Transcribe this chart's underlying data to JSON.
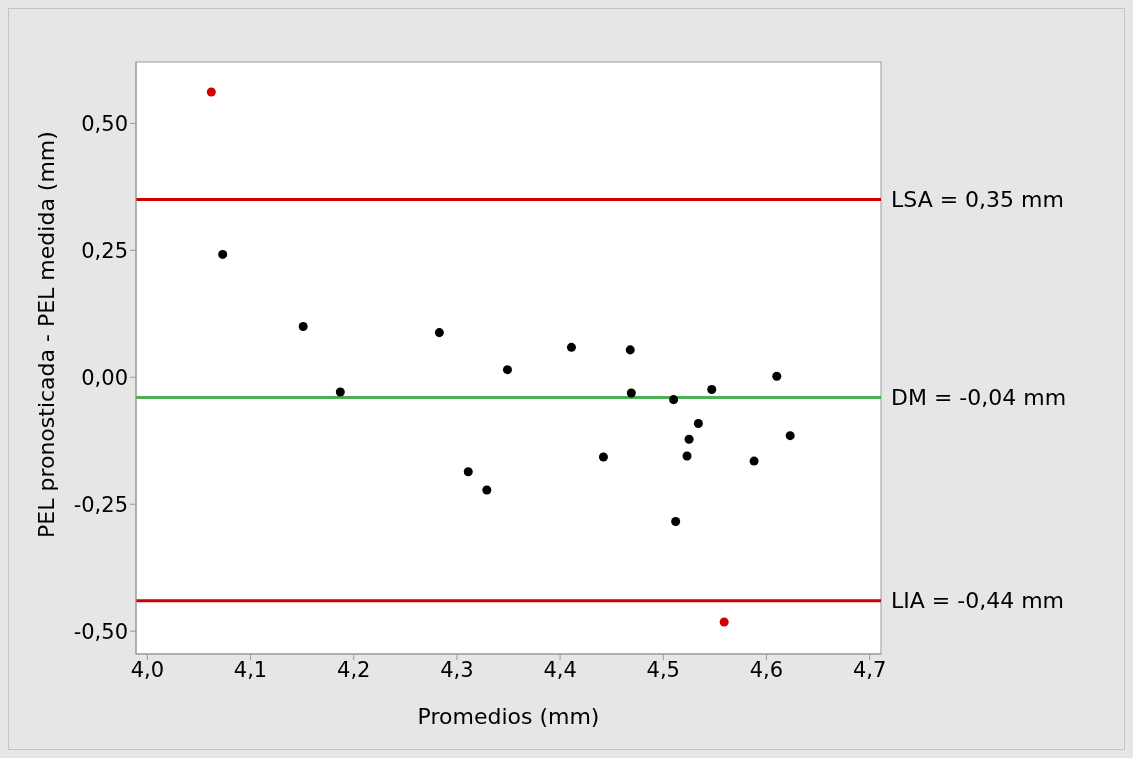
{
  "chart_data": {
    "type": "scatter",
    "xlabel": "Promedios (mm)",
    "ylabel": "PEL pronosticada - PEL medida (mm)",
    "xlim": [
      3.989,
      4.711
    ],
    "xticks": [
      {
        "value": 4.0,
        "label": "4,0"
      },
      {
        "value": 4.1,
        "label": "4,1"
      },
      {
        "value": 4.2,
        "label": "4,2"
      },
      {
        "value": 4.3,
        "label": "4,3"
      },
      {
        "value": 4.4,
        "label": "4,4"
      },
      {
        "value": 4.5,
        "label": "4,5"
      },
      {
        "value": 4.6,
        "label": "4,6"
      },
      {
        "value": 4.7,
        "label": "4,7"
      }
    ],
    "ylim": [
      -0.545,
      0.621
    ],
    "yticks": [
      {
        "value": -0.5,
        "label": "-0,50"
      },
      {
        "value": -0.25,
        "label": "-0,25"
      },
      {
        "value": 0,
        "label": "0,00"
      },
      {
        "value": 0.25,
        "label": "0,25"
      },
      {
        "value": 0.5,
        "label": "0,50"
      }
    ],
    "grid": false,
    "legend": false,
    "marker": "circle",
    "series": [
      {
        "color": "#000000",
        "x": [
          4.073,
          4.151,
          4.187,
          4.283,
          4.311,
          4.329,
          4.349,
          4.411,
          4.442,
          4.468,
          4.469,
          4.51,
          4.512,
          4.523,
          4.525,
          4.534,
          4.547,
          4.588,
          4.61,
          4.623
        ],
        "values": [
          0.242,
          0.1,
          -0.029,
          0.088,
          -0.186,
          -0.222,
          0.015,
          0.059,
          -0.157,
          0.054,
          -0.031,
          -0.044,
          -0.284,
          -0.155,
          -0.122,
          -0.091,
          -0.024,
          -0.165,
          0.002,
          -0.115
        ]
      },
      {
        "color": "#d00000",
        "x": [
          4.062,
          4.559
        ],
        "values": [
          0.562,
          -0.482
        ]
      }
    ],
    "ref_lines": [
      {
        "axis": "y",
        "value": 0.35,
        "label": "LSA = 0,35 mm",
        "color": "#d00000",
        "line_style": "solid"
      },
      {
        "axis": "y",
        "value": -0.04,
        "label": "DM = -0,04 mm",
        "color": "#4caf50",
        "line_style": "solid"
      },
      {
        "axis": "y",
        "value": -0.44,
        "label": "LIA = -0,44 mm",
        "color": "#d00000",
        "line_style": "solid"
      }
    ]
  }
}
